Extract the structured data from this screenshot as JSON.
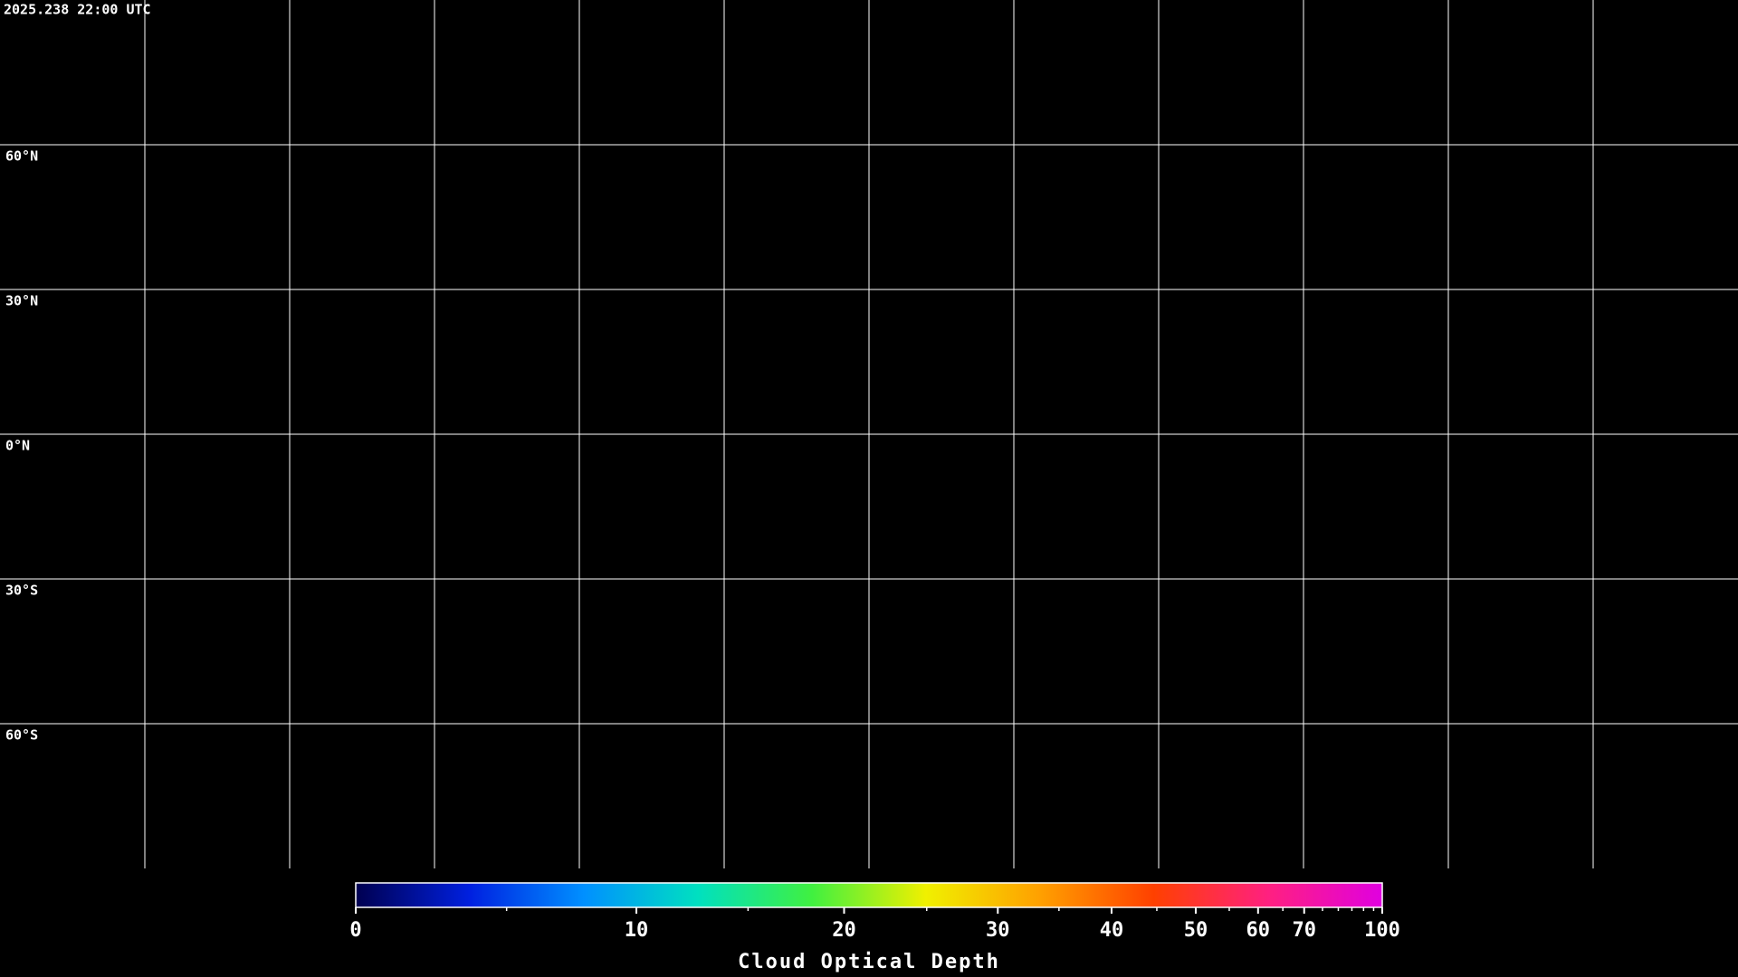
{
  "timestamp": "2025.238 22:00 UTC",
  "map": {
    "latitude_lines": [
      {
        "value": 60,
        "label": "60°N"
      },
      {
        "value": 30,
        "label": "30°N"
      },
      {
        "value": 0,
        "label": "0°N"
      },
      {
        "value": -30,
        "label": "30°S"
      },
      {
        "value": -60,
        "label": "60°S"
      }
    ],
    "longitude_lines": [
      -150,
      -120,
      -90,
      -60,
      -30,
      0,
      30,
      60,
      90,
      120,
      150
    ],
    "lonlim": [
      -180,
      180
    ],
    "latlim": [
      90,
      -90
    ]
  },
  "colorbar": {
    "label": "Cloud Optical Depth",
    "lim": [
      0,
      100
    ],
    "ticks": [
      0,
      10,
      20,
      30,
      40,
      50,
      60,
      70,
      100
    ],
    "minor_ticks": [
      5,
      15,
      25,
      35,
      45,
      55,
      65,
      75,
      80,
      85,
      90,
      95
    ],
    "colormap": [
      "#000050",
      "#0020e0",
      "#0090ff",
      "#00e0c0",
      "#40f040",
      "#f0f000",
      "#ffa000",
      "#ff4000",
      "#ff2080",
      "#e000e0"
    ]
  }
}
